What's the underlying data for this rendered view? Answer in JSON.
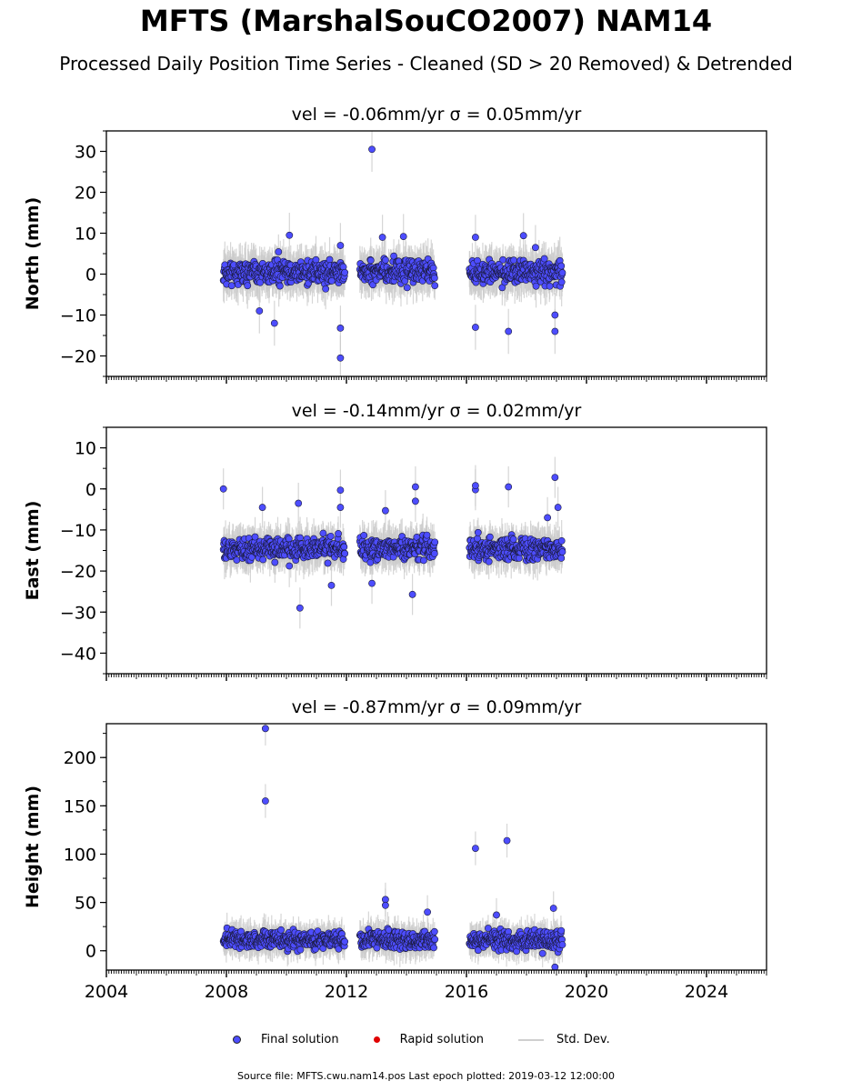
{
  "title": "MFTS (MarshalSouCO2007) NAM14",
  "subtitle": "Processed Daily Position Time Series - Cleaned (SD > 20 Removed) & Detrended",
  "legend": {
    "final": "Final solution",
    "rapid": "Rapid solution",
    "std": "Std. Dev."
  },
  "footer": "Source file: MFTS.cwu.nam14.pos  Last epoch plotted: 2019-03-12 12:00:00",
  "colors": {
    "final": "#4d4dff",
    "rapid": "#e00000",
    "stddev": "#cccccc"
  },
  "chart_data": [
    {
      "type": "scatter",
      "title": "vel = -0.06mm/yr   σ = 0.05mm/yr",
      "ylabel": "North (mm)",
      "xlim": [
        2004,
        2026
      ],
      "ylim": [
        -25,
        35
      ],
      "yticks": [
        -20,
        -10,
        0,
        10,
        20,
        30
      ],
      "ytick_labels": [
        "−20",
        "−10",
        "0",
        "10",
        "20",
        "30"
      ],
      "base": 0.5,
      "spread": 2.2,
      "segments": [
        [
          2007.9,
          2011.95
        ],
        [
          2012.45,
          2014.95
        ],
        [
          2016.1,
          2019.2
        ]
      ],
      "outliers": [
        [
          2012.85,
          30.5
        ],
        [
          2011.8,
          -20.5
        ],
        [
          2011.8,
          -13.2
        ],
        [
          2009.6,
          -12
        ],
        [
          2009.1,
          -9
        ],
        [
          2010.1,
          9.5
        ],
        [
          2013.2,
          9
        ],
        [
          2013.9,
          9.2
        ],
        [
          2016.3,
          9
        ],
        [
          2016.3,
          -13
        ],
        [
          2017.4,
          -14
        ],
        [
          2018.95,
          -14
        ],
        [
          2018.95,
          -10
        ],
        [
          2017.9,
          9.4
        ],
        [
          2011.8,
          7
        ],
        [
          2018.3,
          6.5
        ]
      ]
    },
    {
      "type": "scatter",
      "title": "vel = -0.14mm/yr   σ = 0.02mm/yr",
      "ylabel": "East (mm)",
      "xlim": [
        2004,
        2026
      ],
      "ylim": [
        -45,
        15
      ],
      "yticks": [
        -40,
        -30,
        -20,
        -10,
        0,
        10
      ],
      "ytick_labels": [
        "−40",
        "−30",
        "−20",
        "−10",
        "0",
        "10"
      ],
      "base": -14.5,
      "spread": 2.0,
      "segments": [
        [
          2007.9,
          2011.95
        ],
        [
          2012.45,
          2014.95
        ],
        [
          2016.1,
          2019.2
        ]
      ],
      "outliers": [
        [
          2007.9,
          0
        ],
        [
          2010.45,
          -29
        ],
        [
          2011.5,
          -23.5
        ],
        [
          2011.8,
          -0.3
        ],
        [
          2011.8,
          -4.5
        ],
        [
          2012.85,
          -23
        ],
        [
          2014.2,
          -25.7
        ],
        [
          2014.3,
          0.5
        ],
        [
          2014.3,
          -3
        ],
        [
          2016.3,
          -0.2
        ],
        [
          2016.3,
          0.8
        ],
        [
          2017.4,
          0.5
        ],
        [
          2018.95,
          2.8
        ],
        [
          2019.05,
          -4.5
        ],
        [
          2018.7,
          -7
        ],
        [
          2009.2,
          -4.5
        ],
        [
          2010.4,
          -3.5
        ],
        [
          2013.3,
          -5.3
        ]
      ]
    },
    {
      "type": "scatter",
      "title": "vel = -0.87mm/yr   σ = 0.09mm/yr",
      "ylabel": "Height (mm)",
      "xlim": [
        2004,
        2026
      ],
      "ylim": [
        -20,
        235
      ],
      "yticks": [
        0,
        50,
        100,
        150,
        200
      ],
      "ytick_labels": [
        "0",
        "50",
        "100",
        "150",
        "200"
      ],
      "xticks": [
        2004,
        2008,
        2012,
        2016,
        2020,
        2024
      ],
      "xtick_labels": [
        "2004",
        "2008",
        "2012",
        "2016",
        "2020",
        "2024"
      ],
      "base": 11,
      "spread": 7,
      "segments": [
        [
          2007.9,
          2011.95
        ],
        [
          2012.45,
          2014.95
        ],
        [
          2016.1,
          2019.2
        ]
      ],
      "outliers": [
        [
          2009.3,
          230
        ],
        [
          2009.3,
          155
        ],
        [
          2016.3,
          106
        ],
        [
          2017.35,
          114
        ],
        [
          2013.3,
          53
        ],
        [
          2013.3,
          47
        ],
        [
          2014.7,
          40
        ],
        [
          2018.9,
          44
        ],
        [
          2018.95,
          -17
        ],
        [
          2017.0,
          37
        ]
      ]
    }
  ]
}
